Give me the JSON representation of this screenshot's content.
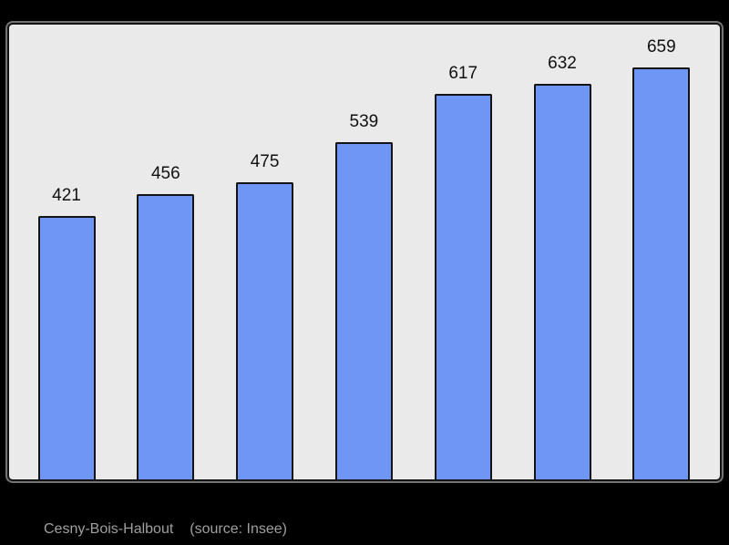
{
  "chart_data": {
    "type": "bar",
    "values": [
      421,
      456,
      475,
      539,
      617,
      632,
      659
    ],
    "data_labels": [
      "421",
      "456",
      "475",
      "539",
      "617",
      "632",
      "659"
    ],
    "title": "",
    "xlabel": "",
    "ylabel": "",
    "ylim": [
      0,
      730
    ],
    "grid": false,
    "legend": "none",
    "axes_visible": false
  },
  "caption": {
    "text": "Cesny-Bois-Halbout",
    "source": "(source: Insee)"
  },
  "colors": {
    "page_background": "#000000",
    "panel_background": "#eaeaea",
    "panel_border": "#141414",
    "bar_fill": "#7096f5",
    "bar_border": "#141414",
    "value_label": "#111111",
    "caption_text": "#9f9f9f"
  }
}
